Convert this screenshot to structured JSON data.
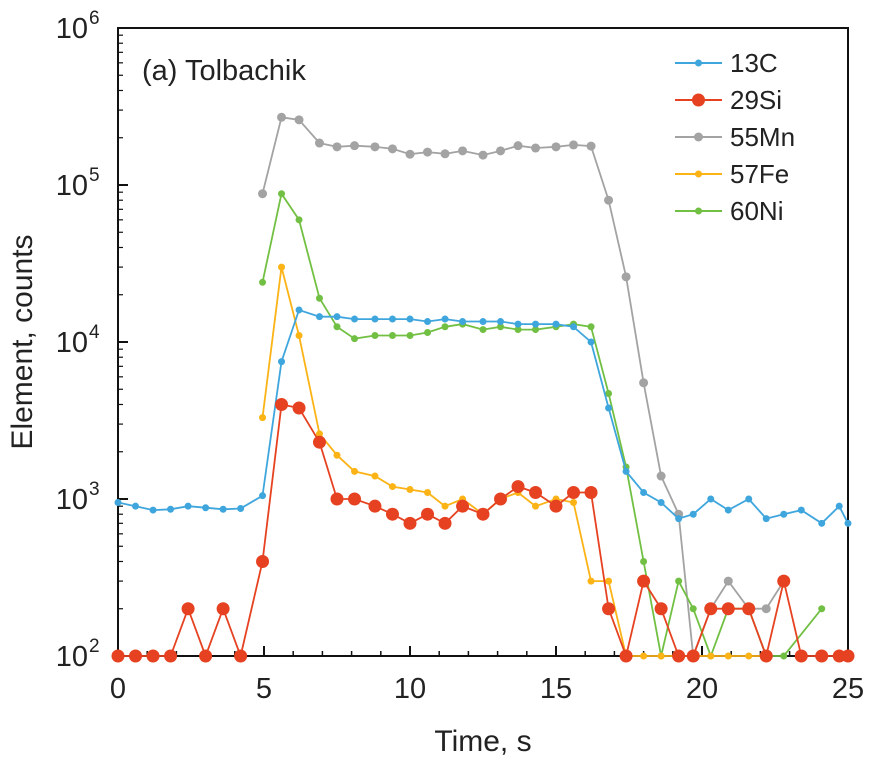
{
  "chart_data": {
    "type": "line",
    "title": "(a) Tolbachik",
    "xlabel": "Time, s",
    "ylabel": "Element, counts",
    "xlim": [
      0,
      25
    ],
    "ylim": [
      100,
      1000000
    ],
    "yscale": "log",
    "grid": false,
    "legend_position": "top-right",
    "x_ticks": [
      0,
      5,
      10,
      15,
      20,
      25
    ],
    "y_ticks": [
      {
        "value": 100,
        "base": "10",
        "exp": "2"
      },
      {
        "value": 1000,
        "base": "10",
        "exp": "3"
      },
      {
        "value": 10000,
        "base": "10",
        "exp": "4"
      },
      {
        "value": 100000,
        "base": "10",
        "exp": "5"
      },
      {
        "value": 1000000,
        "base": "10",
        "exp": "6"
      }
    ],
    "series": [
      {
        "name": "55Mn",
        "color": "#a3a3a3",
        "marker_size": 4.5,
        "points": [
          [
            4.95,
            88000
          ],
          [
            5.6,
            270000
          ],
          [
            6.2,
            260000
          ],
          [
            6.9,
            185000
          ],
          [
            7.5,
            175000
          ],
          [
            8.1,
            178000
          ],
          [
            8.8,
            175000
          ],
          [
            9.4,
            170000
          ],
          [
            10.0,
            157000
          ],
          [
            10.6,
            162000
          ],
          [
            11.2,
            158000
          ],
          [
            11.8,
            165000
          ],
          [
            12.5,
            155000
          ],
          [
            13.1,
            165000
          ],
          [
            13.7,
            178000
          ],
          [
            14.3,
            172000
          ],
          [
            15.0,
            175000
          ],
          [
            15.6,
            180000
          ],
          [
            16.2,
            177000
          ],
          [
            16.8,
            80000
          ],
          [
            17.4,
            26000
          ],
          [
            18.0,
            5500
          ],
          [
            18.6,
            1400
          ],
          [
            19.2,
            800
          ],
          [
            19.7,
            100
          ],
          [
            20.3,
            200
          ],
          [
            20.9,
            300
          ],
          [
            21.6,
            200
          ],
          [
            22.2,
            200
          ],
          [
            22.8,
            300
          ]
        ]
      },
      {
        "name": "60Ni",
        "color": "#72c043",
        "marker_size": 3.5,
        "points": [
          [
            4.95,
            24000
          ],
          [
            5.6,
            88000
          ],
          [
            6.2,
            60000
          ],
          [
            6.9,
            19000
          ],
          [
            7.5,
            12500
          ],
          [
            8.1,
            10500
          ],
          [
            8.8,
            11000
          ],
          [
            9.4,
            11000
          ],
          [
            10.0,
            11000
          ],
          [
            10.6,
            11500
          ],
          [
            11.2,
            12500
          ],
          [
            11.8,
            13000
          ],
          [
            12.5,
            12000
          ],
          [
            13.1,
            12500
          ],
          [
            13.7,
            12000
          ],
          [
            14.3,
            12000
          ],
          [
            15.0,
            12500
          ],
          [
            15.6,
            13000
          ],
          [
            16.2,
            12500
          ],
          [
            16.8,
            4700
          ],
          [
            17.4,
            1600
          ],
          [
            18.0,
            400
          ],
          [
            18.6,
            100
          ],
          [
            19.2,
            300
          ],
          [
            19.7,
            200
          ],
          [
            20.3,
            100
          ],
          [
            20.9,
            200
          ],
          [
            21.6,
            200
          ],
          [
            22.2,
            100
          ],
          [
            22.8,
            100
          ],
          [
            24.1,
            200
          ]
        ]
      },
      {
        "name": "57Fe",
        "color": "#fbb316",
        "marker_size": 3.5,
        "points": [
          [
            4.95,
            3300
          ],
          [
            5.6,
            30000
          ],
          [
            6.2,
            11000
          ],
          [
            6.9,
            2600
          ],
          [
            7.5,
            1900
          ],
          [
            8.1,
            1500
          ],
          [
            8.8,
            1400
          ],
          [
            9.4,
            1200
          ],
          [
            10.0,
            1150
          ],
          [
            10.6,
            1100
          ],
          [
            11.2,
            900
          ],
          [
            11.8,
            1000
          ],
          [
            12.5,
            800
          ],
          [
            13.1,
            1000
          ],
          [
            13.7,
            1100
          ],
          [
            14.3,
            900
          ],
          [
            15.0,
            1000
          ],
          [
            15.6,
            950
          ],
          [
            16.2,
            300
          ],
          [
            16.8,
            300
          ],
          [
            17.4,
            100
          ],
          [
            18.0,
            100
          ],
          [
            18.6,
            100
          ],
          [
            19.2,
            100
          ],
          [
            19.7,
            100
          ],
          [
            20.3,
            100
          ],
          [
            20.9,
            100
          ],
          [
            21.6,
            100
          ],
          [
            22.2,
            100
          ]
        ]
      },
      {
        "name": "13C",
        "color": "#3fa6dd",
        "marker_size": 3.5,
        "points": [
          [
            0.0,
            950
          ],
          [
            0.6,
            900
          ],
          [
            1.2,
            850
          ],
          [
            1.8,
            860
          ],
          [
            2.4,
            900
          ],
          [
            3.0,
            880
          ],
          [
            3.6,
            860
          ],
          [
            4.2,
            870
          ],
          [
            4.95,
            1050
          ],
          [
            5.6,
            7500
          ],
          [
            6.2,
            16000
          ],
          [
            6.9,
            14500
          ],
          [
            7.5,
            14500
          ],
          [
            8.1,
            14000
          ],
          [
            8.8,
            14000
          ],
          [
            9.4,
            14000
          ],
          [
            10.0,
            14000
          ],
          [
            10.6,
            13500
          ],
          [
            11.2,
            14000
          ],
          [
            11.8,
            13500
          ],
          [
            12.5,
            13500
          ],
          [
            13.1,
            13500
          ],
          [
            13.7,
            13000
          ],
          [
            14.3,
            13000
          ],
          [
            15.0,
            13000
          ],
          [
            15.6,
            12500
          ],
          [
            16.2,
            10000
          ],
          [
            16.8,
            3800
          ],
          [
            17.4,
            1500
          ],
          [
            18.0,
            1100
          ],
          [
            18.6,
            950
          ],
          [
            19.2,
            750
          ],
          [
            19.7,
            800
          ],
          [
            20.3,
            1000
          ],
          [
            20.9,
            850
          ],
          [
            21.6,
            1000
          ],
          [
            22.2,
            750
          ],
          [
            22.8,
            800
          ],
          [
            23.4,
            850
          ],
          [
            24.1,
            700
          ],
          [
            24.7,
            900
          ],
          [
            25.0,
            700
          ]
        ]
      },
      {
        "name": "29Si",
        "color": "#e64221",
        "marker_size": 6.5,
        "points": [
          [
            0.0,
            100
          ],
          [
            0.6,
            100
          ],
          [
            1.2,
            100
          ],
          [
            1.8,
            100
          ],
          [
            2.4,
            200
          ],
          [
            3.0,
            100
          ],
          [
            3.6,
            200
          ],
          [
            4.2,
            100
          ],
          [
            4.95,
            400
          ],
          [
            5.6,
            4000
          ],
          [
            6.2,
            3800
          ],
          [
            6.9,
            2300
          ],
          [
            7.5,
            1000
          ],
          [
            8.1,
            1000
          ],
          [
            8.8,
            900
          ],
          [
            9.4,
            800
          ],
          [
            10.0,
            700
          ],
          [
            10.6,
            800
          ],
          [
            11.2,
            700
          ],
          [
            11.8,
            900
          ],
          [
            12.5,
            800
          ],
          [
            13.1,
            1000
          ],
          [
            13.7,
            1200
          ],
          [
            14.3,
            1100
          ],
          [
            15.0,
            900
          ],
          [
            15.6,
            1100
          ],
          [
            16.2,
            1100
          ],
          [
            16.8,
            200
          ],
          [
            17.4,
            100
          ],
          [
            18.0,
            300
          ],
          [
            18.6,
            200
          ],
          [
            19.2,
            100
          ],
          [
            19.7,
            100
          ],
          [
            20.3,
            200
          ],
          [
            20.9,
            200
          ],
          [
            21.6,
            200
          ],
          [
            22.2,
            100
          ],
          [
            22.8,
            300
          ],
          [
            23.4,
            100
          ],
          [
            24.1,
            100
          ],
          [
            24.7,
            100
          ],
          [
            25.0,
            100
          ]
        ]
      }
    ],
    "legend_order": [
      "13C",
      "29Si",
      "55Mn",
      "57Fe",
      "60Ni"
    ]
  }
}
